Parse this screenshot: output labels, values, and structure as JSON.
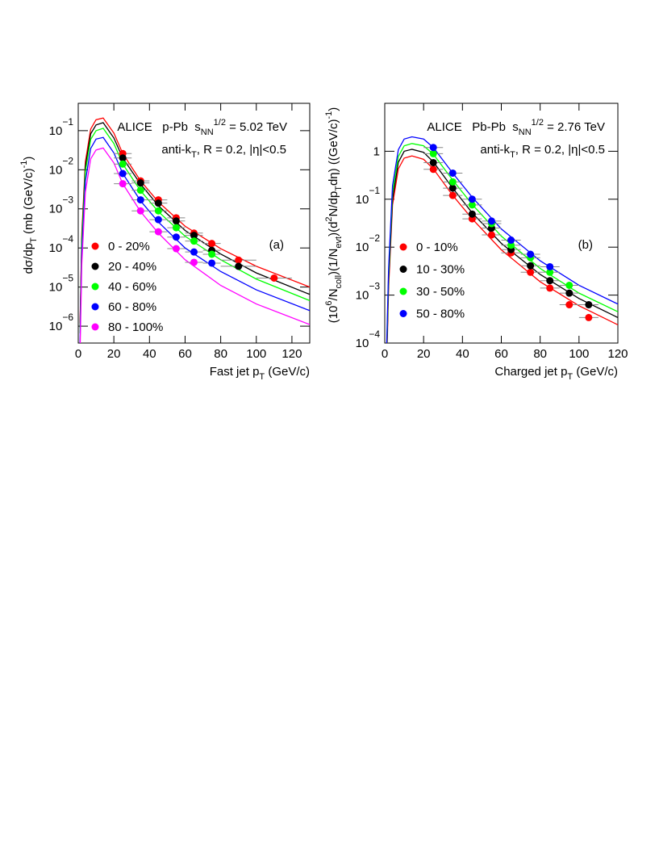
{
  "chart_data": [
    {
      "type": "scatter",
      "log_y": true,
      "annotations": [
        [
          [
            "ALICE   p-Pb  s",
            ""
          ],
          [
            "NN",
            "sub"
          ],
          [
            "1/2",
            "sup"
          ],
          [
            " = 5.02 TeV",
            ""
          ]
        ],
        [
          [
            "anti-k",
            ""
          ],
          [
            "T",
            "sub"
          ],
          [
            ", R = 0.2, |η|<0.5",
            ""
          ]
        ],
        [
          [
            "(a)",
            ""
          ]
        ]
      ],
      "x_label": [
        [
          "Fast jet p",
          ""
        ],
        [
          "T",
          "sub"
        ],
        [
          " (GeV/c)",
          ""
        ]
      ],
      "y_label": [
        [
          "dσ/dp",
          ""
        ],
        [
          "T",
          "sub"
        ],
        [
          " (mb (GeV/c)",
          ""
        ],
        [
          "-1",
          "sup"
        ],
        [
          ")",
          ""
        ]
      ],
      "xlim": [
        0,
        130
      ],
      "xticks": [
        0,
        20,
        40,
        60,
        80,
        100,
        120
      ],
      "ylim": [
        3.7e-07,
        0.5
      ],
      "yticks": [
        {
          "value": 1e-06,
          "label": "10",
          "sup": "−6"
        },
        {
          "value": 1e-05,
          "label": "10",
          "sup": "−5"
        },
        {
          "value": 0.0001,
          "label": "10",
          "sup": "−4"
        },
        {
          "value": 0.001,
          "label": "10",
          "sup": "−3"
        },
        {
          "value": 0.01,
          "label": "10",
          "sup": "−2"
        },
        {
          "value": 0.1,
          "label": "10",
          "sup": "−1"
        }
      ],
      "x": [
        25,
        35,
        45,
        55,
        65,
        75,
        90,
        110
      ],
      "xerr": [
        5,
        5,
        5,
        5,
        5,
        5,
        10,
        10
      ],
      "fit_x": [
        1,
        2,
        4,
        7,
        10,
        14,
        20,
        25,
        35,
        45,
        60,
        80,
        100,
        130
      ],
      "series": [
        {
          "name": "0 - 20%",
          "color": "#ff0000",
          "values": [
            0.026,
            0.0052,
            0.0017,
            0.00059,
            0.00024,
            0.00013,
            4.9e-05,
            1.7e-05
          ],
          "fit": [
            1.2e-06,
            0.00023,
            0.016,
            0.11,
            0.19,
            0.21,
            0.087,
            0.026,
            0.0052,
            0.0015,
            0.00036,
            9.6e-05,
            3.4e-05,
            1e-05
          ]
        },
        {
          "name": "20 - 40%",
          "color": "#000000",
          "values": [
            0.02,
            0.0046,
            0.0014,
            0.00049,
            0.00021,
            8.7e-05,
            3.4e-05,
            null
          ],
          "fit": [
            9e-07,
            0.00017,
            0.012,
            0.083,
            0.14,
            0.16,
            0.065,
            0.02,
            0.0043,
            0.0012,
            0.00028,
            7e-05,
            2.3e-05,
            6.5e-06
          ]
        },
        {
          "name": "40 - 60%",
          "color": "#00ff00",
          "values": [
            0.014,
            0.003,
            0.00089,
            0.00033,
            0.00015,
            6.9e-05,
            null,
            null
          ],
          "fit": [
            6.6e-07,
            0.00013,
            0.0088,
            0.06,
            0.1,
            0.115,
            0.047,
            0.014,
            0.0029,
            0.00085,
            0.0002,
            5e-05,
            1.6e-05,
            4.5e-06
          ]
        },
        {
          "name": "60 - 80%",
          "color": "#0000ff",
          "values": [
            0.008,
            0.0017,
            0.00053,
            0.00019,
            7.9e-05,
            4.1e-05,
            null,
            null
          ],
          "fit": [
            3.8e-07,
            7.4e-05,
            0.0051,
            0.035,
            0.061,
            0.067,
            0.027,
            0.008,
            0.0016,
            0.00046,
            0.0001,
            2.5e-05,
            8.5e-06,
            2.5e-06
          ]
        },
        {
          "name": "80 - 100%",
          "color": "#ff00ff",
          "values": [
            0.0044,
            0.00089,
            0.00026,
            9.6e-05,
            4.3e-05,
            null,
            null,
            null
          ],
          "fit": [
            2e-07,
            3.9e-05,
            0.0027,
            0.019,
            0.032,
            0.036,
            0.015,
            0.0044,
            0.00085,
            0.00024,
            5e-05,
            1.1e-05,
            3.7e-06,
            1.1e-06
          ]
        }
      ]
    },
    {
      "type": "scatter",
      "log_y": true,
      "annotations": [
        [
          [
            "ALICE   Pb-Pb  s",
            ""
          ],
          [
            "NN",
            "sub"
          ],
          [
            "1/2",
            "sup"
          ],
          [
            " = 2.76 TeV",
            ""
          ]
        ],
        [
          [
            "anti-k",
            ""
          ],
          [
            "T",
            "sub"
          ],
          [
            ", R = 0.2, |η|<0.5",
            ""
          ]
        ],
        [
          [
            "(b)",
            ""
          ]
        ]
      ],
      "x_label": [
        [
          "Charged jet p",
          ""
        ],
        [
          "T",
          "sub"
        ],
        [
          " (GeV/c)",
          ""
        ]
      ],
      "y_label": [
        [
          "(10",
          ""
        ],
        [
          "6",
          "sup"
        ],
        [
          "/N",
          ""
        ],
        [
          "coll",
          "sub"
        ],
        [
          ")(1/N",
          ""
        ],
        [
          "evt",
          "sub"
        ],
        [
          ")(d",
          ""
        ],
        [
          "2",
          "sup"
        ],
        [
          "N/dp",
          ""
        ],
        [
          "T",
          "sub"
        ],
        [
          "dη) ((GeV/c)",
          ""
        ],
        [
          "-1",
          "sup"
        ],
        [
          ")",
          ""
        ]
      ],
      "xlim": [
        0,
        120
      ],
      "xticks": [
        0,
        20,
        40,
        60,
        80,
        100,
        120
      ],
      "ylim": [
        0.0001,
        10
      ],
      "yticks": [
        {
          "value": 0.0001,
          "label": "10",
          "sup": "−4"
        },
        {
          "value": 0.001,
          "label": "10",
          "sup": "−3"
        },
        {
          "value": 0.01,
          "label": "10",
          "sup": "−2"
        },
        {
          "value": 0.1,
          "label": "10",
          "sup": "−1"
        },
        1
      ],
      "x": [
        25,
        35,
        45,
        55,
        65,
        75,
        85,
        95,
        105
      ],
      "xerr": [
        5,
        5,
        5,
        5,
        5,
        5,
        5,
        5,
        5
      ],
      "fit_x": [
        1,
        2,
        4,
        7,
        10,
        14,
        20,
        25,
        35,
        45,
        60,
        80,
        100,
        120
      ],
      "series": [
        {
          "name": "0 - 10%",
          "color": "#ff0000",
          "values": [
            0.42,
            0.12,
            0.039,
            0.018,
            0.0076,
            0.003,
            0.0014,
            0.00063,
            0.00034
          ],
          "fit": [
            3.6e-05,
            0.0015,
            0.076,
            0.43,
            0.72,
            0.8,
            0.68,
            0.43,
            0.12,
            0.039,
            0.0088,
            0.0019,
            0.0006,
            0.00024
          ]
        },
        {
          "name": "10 - 30%",
          "color": "#000000",
          "values": [
            0.58,
            0.17,
            0.049,
            0.025,
            0.0089,
            0.0041,
            0.002,
            0.0011,
            0.00063
          ],
          "fit": [
            5e-05,
            0.0021,
            0.1,
            0.59,
            1.0,
            1.1,
            0.95,
            0.6,
            0.17,
            0.052,
            0.012,
            0.0027,
            0.00085,
            0.00034
          ]
        },
        {
          "name": "30 - 50%",
          "color": "#00ff00",
          "values": [
            0.89,
            0.23,
            0.076,
            0.031,
            0.011,
            0.006,
            0.003,
            0.0016,
            null
          ],
          "fit": [
            6.5e-05,
            0.0027,
            0.14,
            0.78,
            1.3,
            1.45,
            1.3,
            0.87,
            0.25,
            0.078,
            0.017,
            0.0036,
            0.0011,
            0.00045
          ]
        },
        {
          "name": "50 - 80%",
          "color": "#0000ff",
          "values": [
            1.2,
            0.35,
            0.1,
            0.035,
            0.014,
            0.0071,
            0.0039,
            null,
            null
          ],
          "fit": [
            9e-05,
            0.0038,
            0.19,
            1.08,
            1.8,
            2.0,
            1.8,
            1.2,
            0.35,
            0.11,
            0.024,
            0.0052,
            0.0016,
            0.00065
          ]
        }
      ]
    }
  ]
}
